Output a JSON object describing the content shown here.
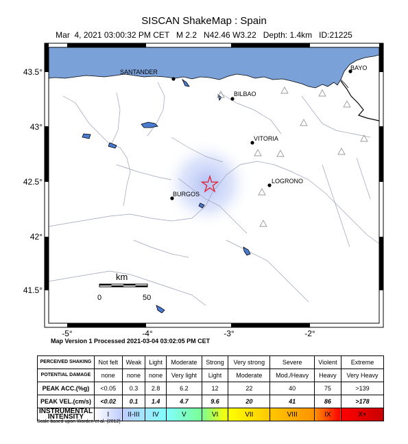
{
  "header": {
    "title": "SISCAN ShakeMap : Spain",
    "subtitle": "Mar  4, 2021 03:00:32 PM CET   M 2.2   N42.46 W3.22   Depth: 1.4km   ID:21225"
  },
  "map": {
    "lat_ticks": [
      "43.5°",
      "43°",
      "42.5°",
      "42°",
      "41.5°"
    ],
    "lon_ticks": [
      "-5°",
      "-4°",
      "-3°",
      "-2°"
    ],
    "cities": [
      {
        "name": "SANTANDER"
      },
      {
        "name": "BILBAO"
      },
      {
        "name": "BAYO"
      },
      {
        "name": "VITORIA"
      },
      {
        "name": "LOGRONO"
      },
      {
        "name": "BURGOS"
      }
    ],
    "scale_bar": {
      "unit": "km",
      "start": "0",
      "end": "50"
    },
    "colors": {
      "sea": "#7ba1d9",
      "epicenter": "#e0202a",
      "intensity_halo": "#aebdf5"
    }
  },
  "processed_note": "Map Version 1 Processed 2021-03-04 03:02:05 PM CET",
  "legend": {
    "rows": [
      {
        "label": "PERCEIVED SHAKING",
        "cells": [
          "Not felt",
          "Weak",
          "Light",
          "Moderate",
          "Strong",
          "Very strong",
          "Severe",
          "Violent",
          "Extreme"
        ]
      },
      {
        "label": "POTENTIAL DAMAGE",
        "cells": [
          "none",
          "none",
          "none",
          "Very light",
          "Light",
          "Moderate",
          "Mod./Heavy",
          "Heavy",
          "Very Heavy"
        ]
      },
      {
        "label": "PEAK ACC.(%g)",
        "cells": [
          "<0.05",
          "0.3",
          "2.8",
          "6.2",
          "12",
          "22",
          "40",
          "75",
          ">139"
        ]
      },
      {
        "label": "PEAK VEL.(cm/s)",
        "cells": [
          "<0.02",
          "0.1",
          "1.4",
          "4.7",
          "9.6",
          "20",
          "41",
          "86",
          ">178"
        ]
      },
      {
        "label": "INSTRUMENTAL INTENSITY",
        "cells": [
          "I",
          "II-III",
          "IV",
          "V",
          "VI",
          "VII",
          "VIII",
          "IX",
          "X+"
        ]
      }
    ],
    "intensity_colors": [
      "#ffffff",
      "#bfccff",
      "#a0e6ff",
      "#80ffff",
      "#7aff93",
      "#ffff00",
      "#ffc800",
      "#ff9100",
      "#ff0000",
      "#c80000"
    ]
  },
  "scale_note": "Scale based upon Worden et al. (2012)"
}
